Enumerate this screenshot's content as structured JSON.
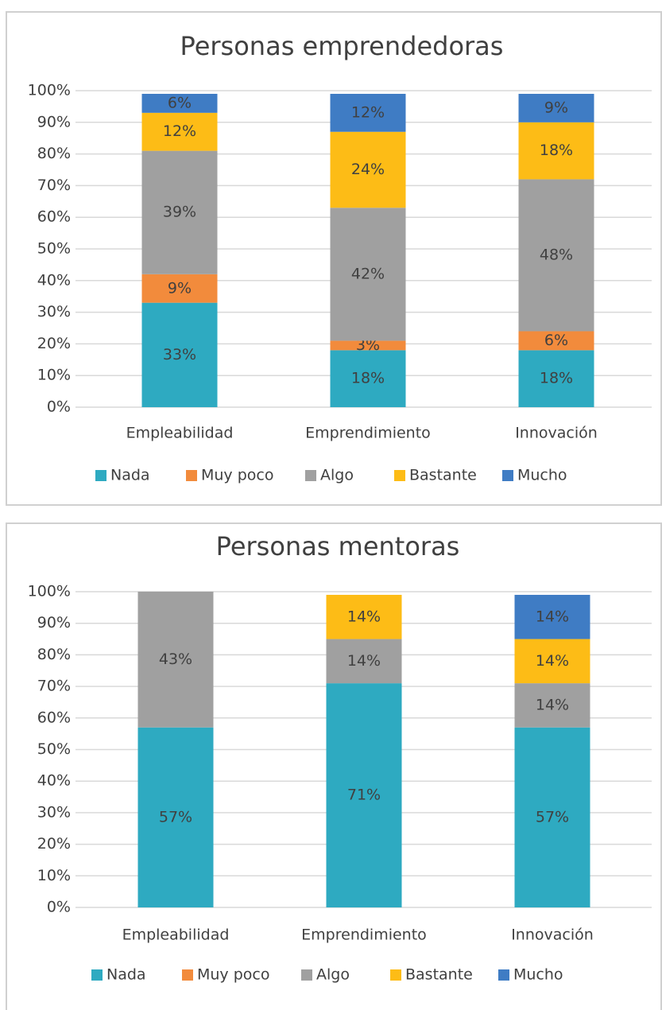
{
  "chart_data": [
    {
      "type": "stacked_bar",
      "title": "Personas emprendedoras",
      "categories": [
        "Empleabilidad",
        "Emprendimiento",
        "Innovación"
      ],
      "series": [
        {
          "name": "Nada",
          "color": "#2eaac1",
          "values": [
            33,
            18,
            18
          ],
          "value_labels": [
            "33%",
            "18%",
            "18%"
          ]
        },
        {
          "name": "Muy poco",
          "color": "#f28b3c",
          "values": [
            9,
            3,
            6
          ],
          "value_labels": [
            "9%",
            "3%",
            "6%"
          ]
        },
        {
          "name": "Algo",
          "color": "#a0a0a0",
          "values": [
            39,
            42,
            48
          ],
          "value_labels": [
            "39%",
            "42%",
            "48%"
          ]
        },
        {
          "name": "Bastante",
          "color": "#fdbc16",
          "values": [
            12,
            24,
            18
          ],
          "value_labels": [
            "12%",
            "24%",
            "18%"
          ]
        },
        {
          "name": "Mucho",
          "color": "#3f7cc4",
          "values": [
            6,
            12,
            9
          ],
          "value_labels": [
            "6%",
            "12%",
            "9%"
          ]
        }
      ],
      "ylim": [
        0,
        100
      ],
      "yticks": [
        {
          "value": 0,
          "label": "0%"
        },
        {
          "value": 10,
          "label": "10%"
        },
        {
          "value": 20,
          "label": "20%"
        },
        {
          "value": 30,
          "label": "30%"
        },
        {
          "value": 40,
          "label": "40%"
        },
        {
          "value": 50,
          "label": "50%"
        },
        {
          "value": 60,
          "label": "60%"
        },
        {
          "value": 70,
          "label": "70%"
        },
        {
          "value": 80,
          "label": "80%"
        },
        {
          "value": 90,
          "label": "90%"
        },
        {
          "value": 100,
          "label": "100%"
        }
      ],
      "grid": true,
      "legend": "bottom"
    },
    {
      "type": "stacked_bar",
      "title": "Personas mentoras",
      "categories": [
        "Empleabilidad",
        "Emprendimiento",
        "Innovación"
      ],
      "series": [
        {
          "name": "Nada",
          "color": "#2eaac1",
          "values": [
            57,
            71,
            57
          ],
          "value_labels": [
            "57%",
            "71%",
            "57%"
          ]
        },
        {
          "name": "Muy poco",
          "color": "#f28b3c",
          "values": [
            null,
            null,
            null
          ],
          "value_labels": [
            null,
            null,
            null
          ]
        },
        {
          "name": "Algo",
          "color": "#a0a0a0",
          "values": [
            43,
            14,
            14
          ],
          "value_labels": [
            "43%",
            "14%",
            "14%"
          ]
        },
        {
          "name": "Bastante",
          "color": "#fdbc16",
          "values": [
            null,
            14,
            14
          ],
          "value_labels": [
            null,
            "14%",
            "14%"
          ]
        },
        {
          "name": "Mucho",
          "color": "#3f7cc4",
          "values": [
            null,
            null,
            14
          ],
          "value_labels": [
            null,
            null,
            "14%"
          ]
        }
      ],
      "ylim": [
        0,
        100
      ],
      "yticks": [
        {
          "value": 0,
          "label": "0%"
        },
        {
          "value": 10,
          "label": "10%"
        },
        {
          "value": 20,
          "label": "20%"
        },
        {
          "value": 30,
          "label": "30%"
        },
        {
          "value": 40,
          "label": "40%"
        },
        {
          "value": 50,
          "label": "50%"
        },
        {
          "value": 60,
          "label": "60%"
        },
        {
          "value": 70,
          "label": "70%"
        },
        {
          "value": 80,
          "label": "80%"
        },
        {
          "value": 90,
          "label": "90%"
        },
        {
          "value": 100,
          "label": "100%"
        }
      ],
      "grid": true,
      "legend": "bottom"
    }
  ]
}
